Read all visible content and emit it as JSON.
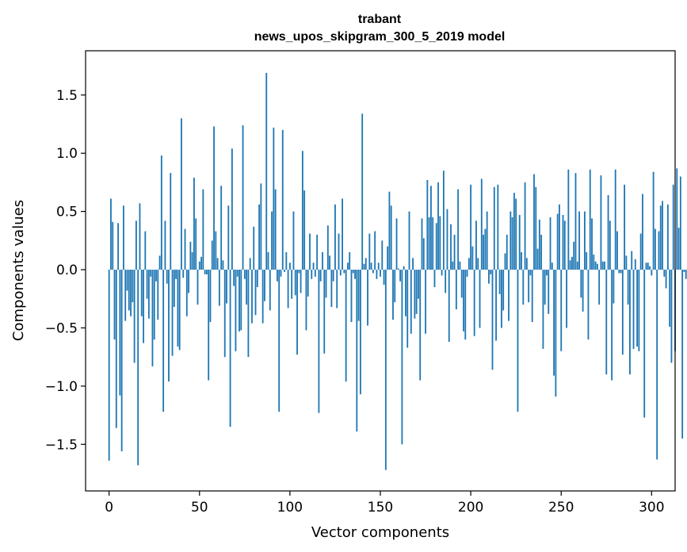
{
  "chart_data": {
    "type": "bar",
    "title": "trabant",
    "subtitle": "news_upos_skipgram_300_5_2019 model",
    "xlabel": "Vector components",
    "ylabel": "Components values",
    "xlim": [
      -13,
      313
    ],
    "ylim": [
      -1.9,
      1.88
    ],
    "xticks": [
      0,
      50,
      100,
      150,
      200,
      250,
      300
    ],
    "yticks": [
      -1.5,
      -1.0,
      -0.5,
      0.0,
      0.5,
      1.0,
      1.5
    ],
    "ytick_labels": [
      "−1.5",
      "−1.0",
      "−0.5",
      "0.0",
      "0.5",
      "1.0",
      "1.5"
    ],
    "bar_color": "#1f77b4",
    "grid": false,
    "values": [
      -1.64,
      0.61,
      0.41,
      -0.6,
      -1.36,
      0.4,
      -1.08,
      -1.56,
      0.55,
      -0.44,
      -0.18,
      -0.35,
      -0.4,
      -0.28,
      -0.8,
      0.42,
      -1.68,
      0.57,
      -0.4,
      -0.63,
      0.33,
      -0.25,
      -0.42,
      -0.06,
      -0.83,
      -0.6,
      -0.1,
      -0.43,
      0.12,
      0.98,
      -1.22,
      0.42,
      -0.12,
      -0.96,
      0.83,
      -0.74,
      -0.32,
      -0.08,
      -0.66,
      -0.69,
      1.3,
      -0.07,
      0.35,
      -0.4,
      -0.2,
      0.24,
      0.15,
      0.79,
      0.44,
      -0.3,
      0.07,
      0.11,
      0.69,
      -0.04,
      -0.04,
      -0.95,
      -0.45,
      0.25,
      1.23,
      0.33,
      0.1,
      -0.31,
      0.72,
      0.08,
      -0.75,
      -0.29,
      0.55,
      -1.35,
      1.04,
      -0.14,
      -0.7,
      -0.06,
      -0.53,
      -0.52,
      1.24,
      -0.08,
      -0.3,
      -0.75,
      0.1,
      -0.46,
      0.37,
      -0.39,
      -0.15,
      0.56,
      0.74,
      -0.46,
      -0.27,
      1.69,
      0.15,
      -0.35,
      0.5,
      1.22,
      0.69,
      -0.1,
      -1.22,
      -0.06,
      1.2,
      -0.02,
      0.15,
      -0.33,
      0.06,
      -0.25,
      0.5,
      -0.22,
      -0.73,
      -0.03,
      -0.2,
      1.02,
      0.68,
      -0.52,
      -0.23,
      0.31,
      -0.08,
      0.06,
      -0.06,
      0.3,
      -1.23,
      -0.1,
      0.15,
      -0.72,
      -0.24,
      0.38,
      0.12,
      -0.32,
      -0.1,
      0.56,
      -0.33,
      0.31,
      -0.05,
      0.61,
      -0.03,
      -0.96,
      0.06,
      0.15,
      -0.45,
      -0.03,
      -0.08,
      -1.39,
      -0.44,
      -1.07,
      1.34,
      0.05,
      0.1,
      -0.48,
      0.31,
      0.06,
      -0.03,
      0.33,
      -0.08,
      0.06,
      -0.06,
      0.25,
      -0.13,
      -1.72,
      0.2,
      0.67,
      0.55,
      -0.43,
      -0.28,
      0.44,
      0.01,
      -0.1,
      -1.5,
      0.03,
      -0.4,
      -0.67,
      0.5,
      -0.55,
      0.1,
      -0.42,
      -0.38,
      -0.25,
      -0.95,
      0.44,
      0.27,
      -0.55,
      0.77,
      0.45,
      0.72,
      0.45,
      -0.15,
      0.4,
      0.75,
      0.46,
      -0.05,
      0.85,
      -0.2,
      0.52,
      -0.62,
      0.39,
      0.07,
      0.3,
      -0.34,
      0.69,
      0.07,
      -0.24,
      -0.53,
      -0.6,
      -0.06,
      0.1,
      0.73,
      0.2,
      -0.57,
      0.42,
      0.1,
      -0.5,
      0.78,
      0.3,
      0.35,
      0.5,
      -0.12,
      -0.04,
      -0.86,
      0.71,
      -0.61,
      0.73,
      -0.21,
      -0.5,
      -0.35,
      0.14,
      0.3,
      -0.44,
      0.5,
      0.45,
      0.66,
      0.61,
      -1.22,
      0.47,
      0.15,
      -0.3,
      0.75,
      0.1,
      -0.28,
      -0.05,
      -0.45,
      0.82,
      0.71,
      0.18,
      0.43,
      0.3,
      -0.68,
      -0.3,
      -0.05,
      -0.38,
      0.45,
      0.06,
      -0.91,
      -1.09,
      0.48,
      0.56,
      -0.7,
      0.47,
      0.42,
      -0.5,
      0.86,
      0.08,
      0.11,
      0.24,
      0.83,
      0.07,
      0.5,
      -0.24,
      -0.36,
      0.5,
      0.15,
      -0.6,
      0.86,
      0.44,
      0.13,
      0.07,
      0.05,
      -0.3,
      0.81,
      0.07,
      0.07,
      -0.9,
      0.64,
      0.42,
      -0.95,
      -0.29,
      0.86,
      0.33,
      -0.03,
      -0.03,
      -0.73,
      0.73,
      0.12,
      -0.3,
      -0.9,
      0.16,
      -0.68,
      0.09,
      -0.66,
      -0.7,
      0.31,
      0.65,
      -1.27,
      0.06,
      0.06,
      0.03,
      -0.05,
      0.84,
      0.35,
      -1.63,
      0.33,
      0.55,
      0.59,
      -0.06,
      -0.16,
      0.56,
      -0.49,
      -0.8,
      0.73,
      -0.7,
      0.87,
      0.36,
      0.8,
      -1.45,
      -0.02,
      -0.08,
      -0.84
    ]
  }
}
